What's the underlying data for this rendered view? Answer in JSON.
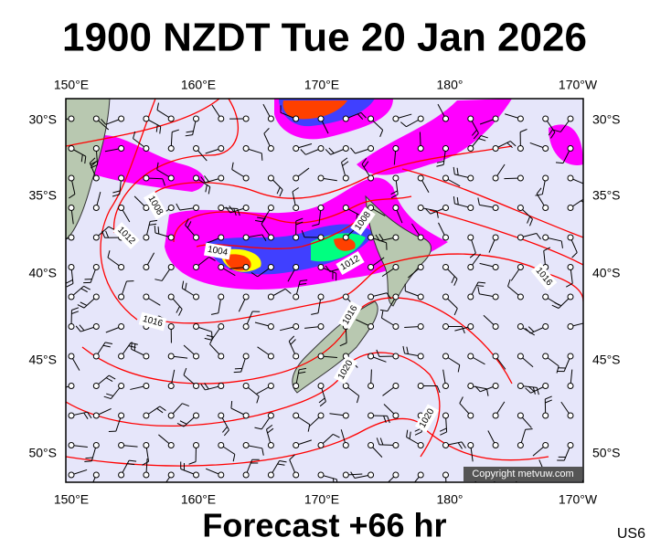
{
  "title": "1900 NZDT Tue 20 Jan 2026",
  "x_axis_labels": [
    "150°E",
    "160°E",
    "170°E",
    "180°",
    "170°W"
  ],
  "y_axis_labels": [
    "30°S",
    "35°S",
    "40°S",
    "45°S",
    "50°S"
  ],
  "isobar_labels": [
    "1008",
    "1012",
    "1004",
    "1008",
    "1012",
    "1016",
    "1016",
    "1020",
    "1020",
    "1016"
  ],
  "copyright": "Copyright metvuw.com",
  "footer": {
    "forecast": "Forecast +66 hr",
    "code": "US6"
  }
}
